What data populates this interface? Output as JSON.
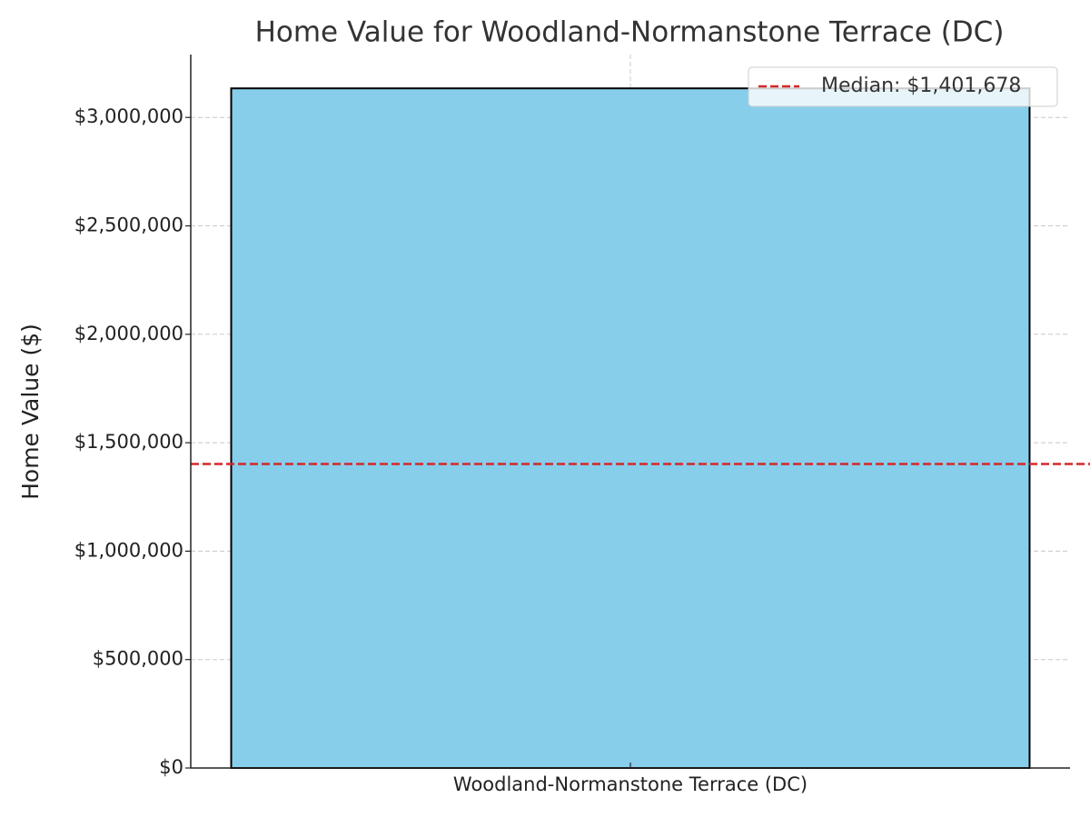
{
  "chart_data": {
    "type": "bar",
    "title": "Home Value for Woodland-Normanstone Terrace (DC)",
    "ylabel": "Home Value ($)",
    "categories": [
      "Woodland-Normanstone Terrace (DC)"
    ],
    "values": [
      3134000
    ],
    "color": "#87ceeb",
    "edgecolor": "#000000",
    "ylim": [
      0,
      3290000
    ],
    "yticks": [
      {
        "value": 0,
        "label": "$0"
      },
      {
        "value": 500000,
        "label": "$500,000"
      },
      {
        "value": 1000000,
        "label": "$1,000,000"
      },
      {
        "value": 1500000,
        "label": "$1,500,000"
      },
      {
        "value": 2000000,
        "label": "$2,000,000"
      },
      {
        "value": 2500000,
        "label": "$2,500,000"
      },
      {
        "value": 3000000,
        "label": "$3,000,000"
      }
    ],
    "grid": true,
    "median": {
      "value": 1401678,
      "label": "Median: $1,401,678",
      "color": "#d62728"
    },
    "legend": "upper right"
  }
}
